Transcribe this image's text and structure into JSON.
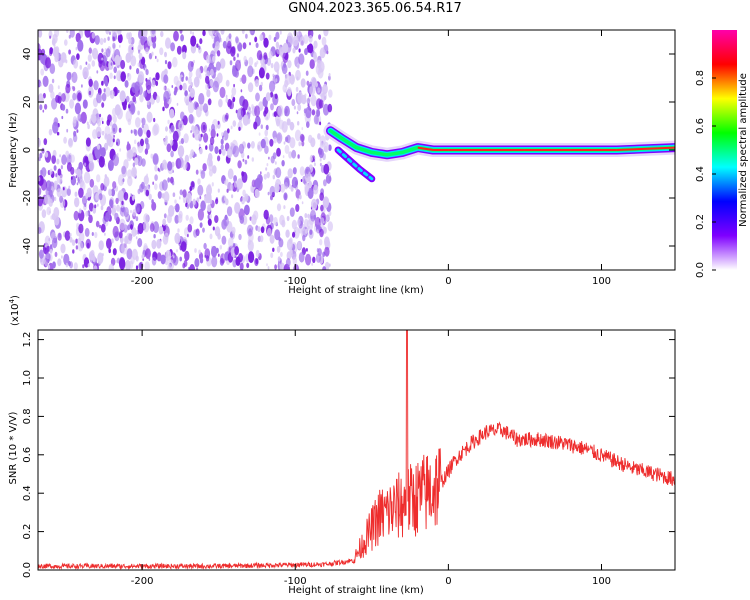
{
  "title": "GN04.2023.365.06.54.R17",
  "colors": {
    "noise": "#7a1fe0",
    "line": "#ee2d2d",
    "colormap": [
      "#ffffff",
      "#7f00ff",
      "#0000ff",
      "#00ffff",
      "#00ff00",
      "#ffff00",
      "#ff0000",
      "#ff00aa"
    ]
  },
  "chart_data": [
    {
      "type": "heatmap",
      "xlabel": "Height of straight line (km)",
      "ylabel": "Frequency (Hz)",
      "xlim": [
        -268,
        148
      ],
      "ylim": [
        -50,
        50
      ],
      "x_ticks": [
        -200,
        -100,
        0,
        100
      ],
      "y_ticks": [
        -40,
        -20,
        0,
        20,
        40
      ],
      "colorbar": {
        "label": "Normalized spectral amplitude",
        "range": [
          0,
          1
        ],
        "ticks": [
          "0.0",
          "0.2",
          "0.4",
          "0.6",
          "0.8"
        ]
      },
      "noise_region": {
        "x": [
          -268,
          -77
        ],
        "y": [
          -50,
          50
        ]
      },
      "signal_track": [
        {
          "x": -77,
          "y": 8
        },
        {
          "x": -70,
          "y": 5
        },
        {
          "x": -60,
          "y": 1
        },
        {
          "x": -50,
          "y": -1
        },
        {
          "x": -40,
          "y": -2
        },
        {
          "x": -30,
          "y": -1
        },
        {
          "x": -20,
          "y": 1
        },
        {
          "x": -10,
          "y": 0
        },
        {
          "x": 0,
          "y": 0
        },
        {
          "x": 20,
          "y": 0
        },
        {
          "x": 50,
          "y": 0
        },
        {
          "x": 80,
          "y": 0
        },
        {
          "x": 110,
          "y": 0
        },
        {
          "x": 148,
          "y": 1
        }
      ],
      "signal_branch": [
        {
          "x": -72,
          "y": 0
        },
        {
          "x": -65,
          "y": -4
        },
        {
          "x": -58,
          "y": -8
        },
        {
          "x": -50,
          "y": -12
        }
      ]
    },
    {
      "type": "line",
      "xlabel": "Height of straight line (km)",
      "ylabel": "SNR (10 * V/V)",
      "y_multiplier": "(x10",
      "y_multiplier_exp": "4",
      "y_multiplier_close": ")",
      "xlim": [
        -268,
        148
      ],
      "ylim": [
        0,
        1.25
      ],
      "x_ticks": [
        -200,
        -100,
        0,
        100
      ],
      "y_ticks": [
        "0.0",
        "0.2",
        "0.4",
        "0.6",
        "0.8",
        "1.0",
        "1.2"
      ],
      "envelope": [
        {
          "x": -268,
          "y": 0.02
        },
        {
          "x": -150,
          "y": 0.02
        },
        {
          "x": -80,
          "y": 0.03
        },
        {
          "x": -62,
          "y": 0.05
        },
        {
          "x": -55,
          "y": 0.15
        },
        {
          "x": -45,
          "y": 0.28
        },
        {
          "x": -35,
          "y": 0.32
        },
        {
          "x": -25,
          "y": 0.36
        },
        {
          "x": -15,
          "y": 0.4
        },
        {
          "x": -5,
          "y": 0.45
        },
        {
          "x": 5,
          "y": 0.58
        },
        {
          "x": 15,
          "y": 0.66
        },
        {
          "x": 25,
          "y": 0.72
        },
        {
          "x": 35,
          "y": 0.73
        },
        {
          "x": 45,
          "y": 0.68
        },
        {
          "x": 60,
          "y": 0.68
        },
        {
          "x": 75,
          "y": 0.66
        },
        {
          "x": 90,
          "y": 0.63
        },
        {
          "x": 105,
          "y": 0.58
        },
        {
          "x": 120,
          "y": 0.53
        },
        {
          "x": 135,
          "y": 0.5
        },
        {
          "x": 148,
          "y": 0.47
        }
      ],
      "spike": {
        "x": -27,
        "y": 1.25
      }
    }
  ]
}
